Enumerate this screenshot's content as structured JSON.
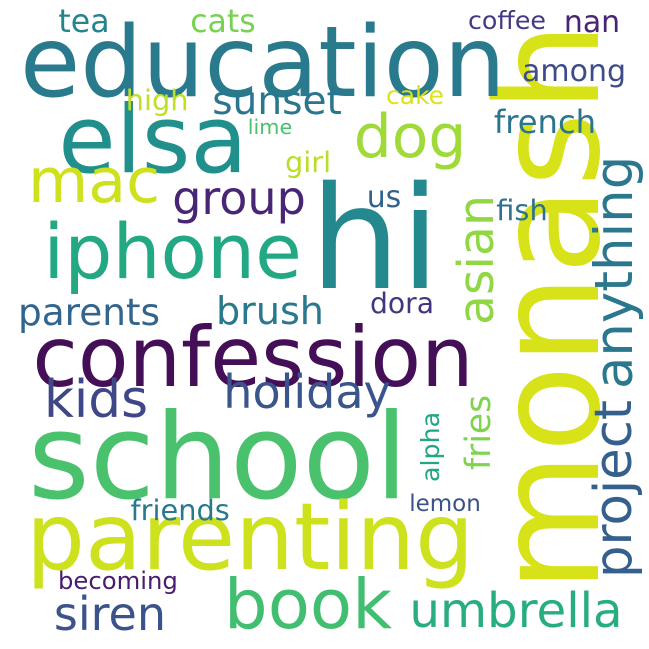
{
  "words": [
    {
      "id": "monash",
      "text": "monash",
      "color": "#d7e219"
    },
    {
      "id": "school",
      "text": "school",
      "color": "#4ac26d"
    },
    {
      "id": "hi",
      "text": "hi",
      "color": "#23898e"
    },
    {
      "id": "confession",
      "text": "confession",
      "color": "#440f56"
    },
    {
      "id": "education",
      "text": "education",
      "color": "#2a7a8e"
    },
    {
      "id": "parenting",
      "text": "parenting",
      "color": "#cde11d"
    },
    {
      "id": "elsa",
      "text": "elsa",
      "color": "#21908d"
    },
    {
      "id": "iphone",
      "text": "iphone",
      "color": "#23a884"
    },
    {
      "id": "book",
      "text": "book",
      "color": "#42be71"
    },
    {
      "id": "dog",
      "text": "dog",
      "color": "#a0da39"
    },
    {
      "id": "mac",
      "text": "mac",
      "color": "#cde11d"
    },
    {
      "id": "project",
      "text": "project",
      "color": "#35608d"
    },
    {
      "id": "anything",
      "text": "anything",
      "color": "#2a778e"
    },
    {
      "id": "group",
      "text": "group",
      "color": "#482575"
    },
    {
      "id": "umbrella",
      "text": "umbrella",
      "color": "#27ad81"
    },
    {
      "id": "holiday",
      "text": "holiday",
      "color": "#39558c"
    },
    {
      "id": "sunset",
      "text": "sunset",
      "color": "#2a768e"
    },
    {
      "id": "kids",
      "text": "kids",
      "color": "#3f4788"
    },
    {
      "id": "brush",
      "text": "brush",
      "color": "#2a788e"
    },
    {
      "id": "siren",
      "text": "siren",
      "color": "#3b528b"
    },
    {
      "id": "asian",
      "text": "asian",
      "color": "#90d743"
    },
    {
      "id": "french",
      "text": "french",
      "color": "#2b748e"
    },
    {
      "id": "among",
      "text": "among",
      "color": "#3e4c8a"
    },
    {
      "id": "nan",
      "text": "nan",
      "color": "#482475"
    },
    {
      "id": "parents",
      "text": "parents",
      "color": "#32658e"
    },
    {
      "id": "fries",
      "text": "fries",
      "color": "#7fd34e"
    },
    {
      "id": "us",
      "text": "us",
      "color": "#33638d"
    },
    {
      "id": "coffee",
      "text": "coffee",
      "color": "#443a83"
    },
    {
      "id": "cats",
      "text": "cats",
      "color": "#77d153"
    },
    {
      "id": "tea",
      "text": "tea",
      "color": "#25848e"
    },
    {
      "id": "becoming",
      "text": "becoming",
      "color": "#481d6f"
    },
    {
      "id": "friends",
      "text": "friends",
      "color": "#29798e"
    },
    {
      "id": "lemon",
      "text": "lemon",
      "color": "#3b518b"
    },
    {
      "id": "dora",
      "text": "dora",
      "color": "#453581"
    },
    {
      "id": "alpha",
      "text": "alpha",
      "color": "#22a785"
    },
    {
      "id": "fish",
      "text": "fish",
      "color": "#2c728e"
    },
    {
      "id": "girl",
      "text": "girl",
      "color": "#b8de29"
    },
    {
      "id": "high",
      "text": "high",
      "color": "#c0df25"
    },
    {
      "id": "cake",
      "text": "cake",
      "color": "#dde318"
    },
    {
      "id": "lime",
      "text": "lime",
      "color": "#4ac16d"
    }
  ]
}
